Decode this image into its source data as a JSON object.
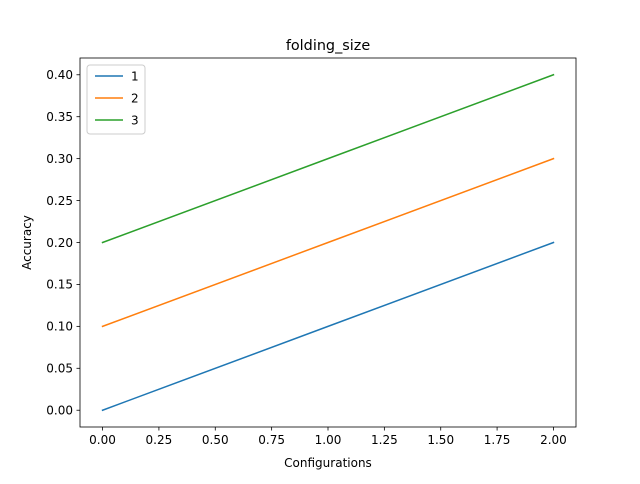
{
  "chart_data": {
    "type": "line",
    "title": "folding_size",
    "xlabel": "Configurations",
    "ylabel": "Accuracy",
    "x": [
      0,
      1,
      2
    ],
    "xlim": [
      -0.1,
      2.1
    ],
    "ylim": [
      -0.02,
      0.42
    ],
    "xticks": [
      0.0,
      0.25,
      0.5,
      0.75,
      1.0,
      1.25,
      1.5,
      1.75,
      2.0
    ],
    "xtick_labels": [
      "0.00",
      "0.25",
      "0.50",
      "0.75",
      "1.00",
      "1.25",
      "1.50",
      "1.75",
      "2.00"
    ],
    "yticks": [
      0.0,
      0.05,
      0.1,
      0.15,
      0.2,
      0.25,
      0.3,
      0.35,
      0.4
    ],
    "ytick_labels": [
      "0.00",
      "0.05",
      "0.10",
      "0.15",
      "0.20",
      "0.25",
      "0.30",
      "0.35",
      "0.40"
    ],
    "grid": false,
    "legend_position": "top-left",
    "series": [
      {
        "name": "1",
        "values": [
          0.0,
          0.1,
          0.2
        ],
        "color": "#1f77b4"
      },
      {
        "name": "2",
        "values": [
          0.1,
          0.2,
          0.3
        ],
        "color": "#ff7f0e"
      },
      {
        "name": "3",
        "values": [
          0.2,
          0.3,
          0.4
        ],
        "color": "#2ca02c"
      }
    ]
  }
}
